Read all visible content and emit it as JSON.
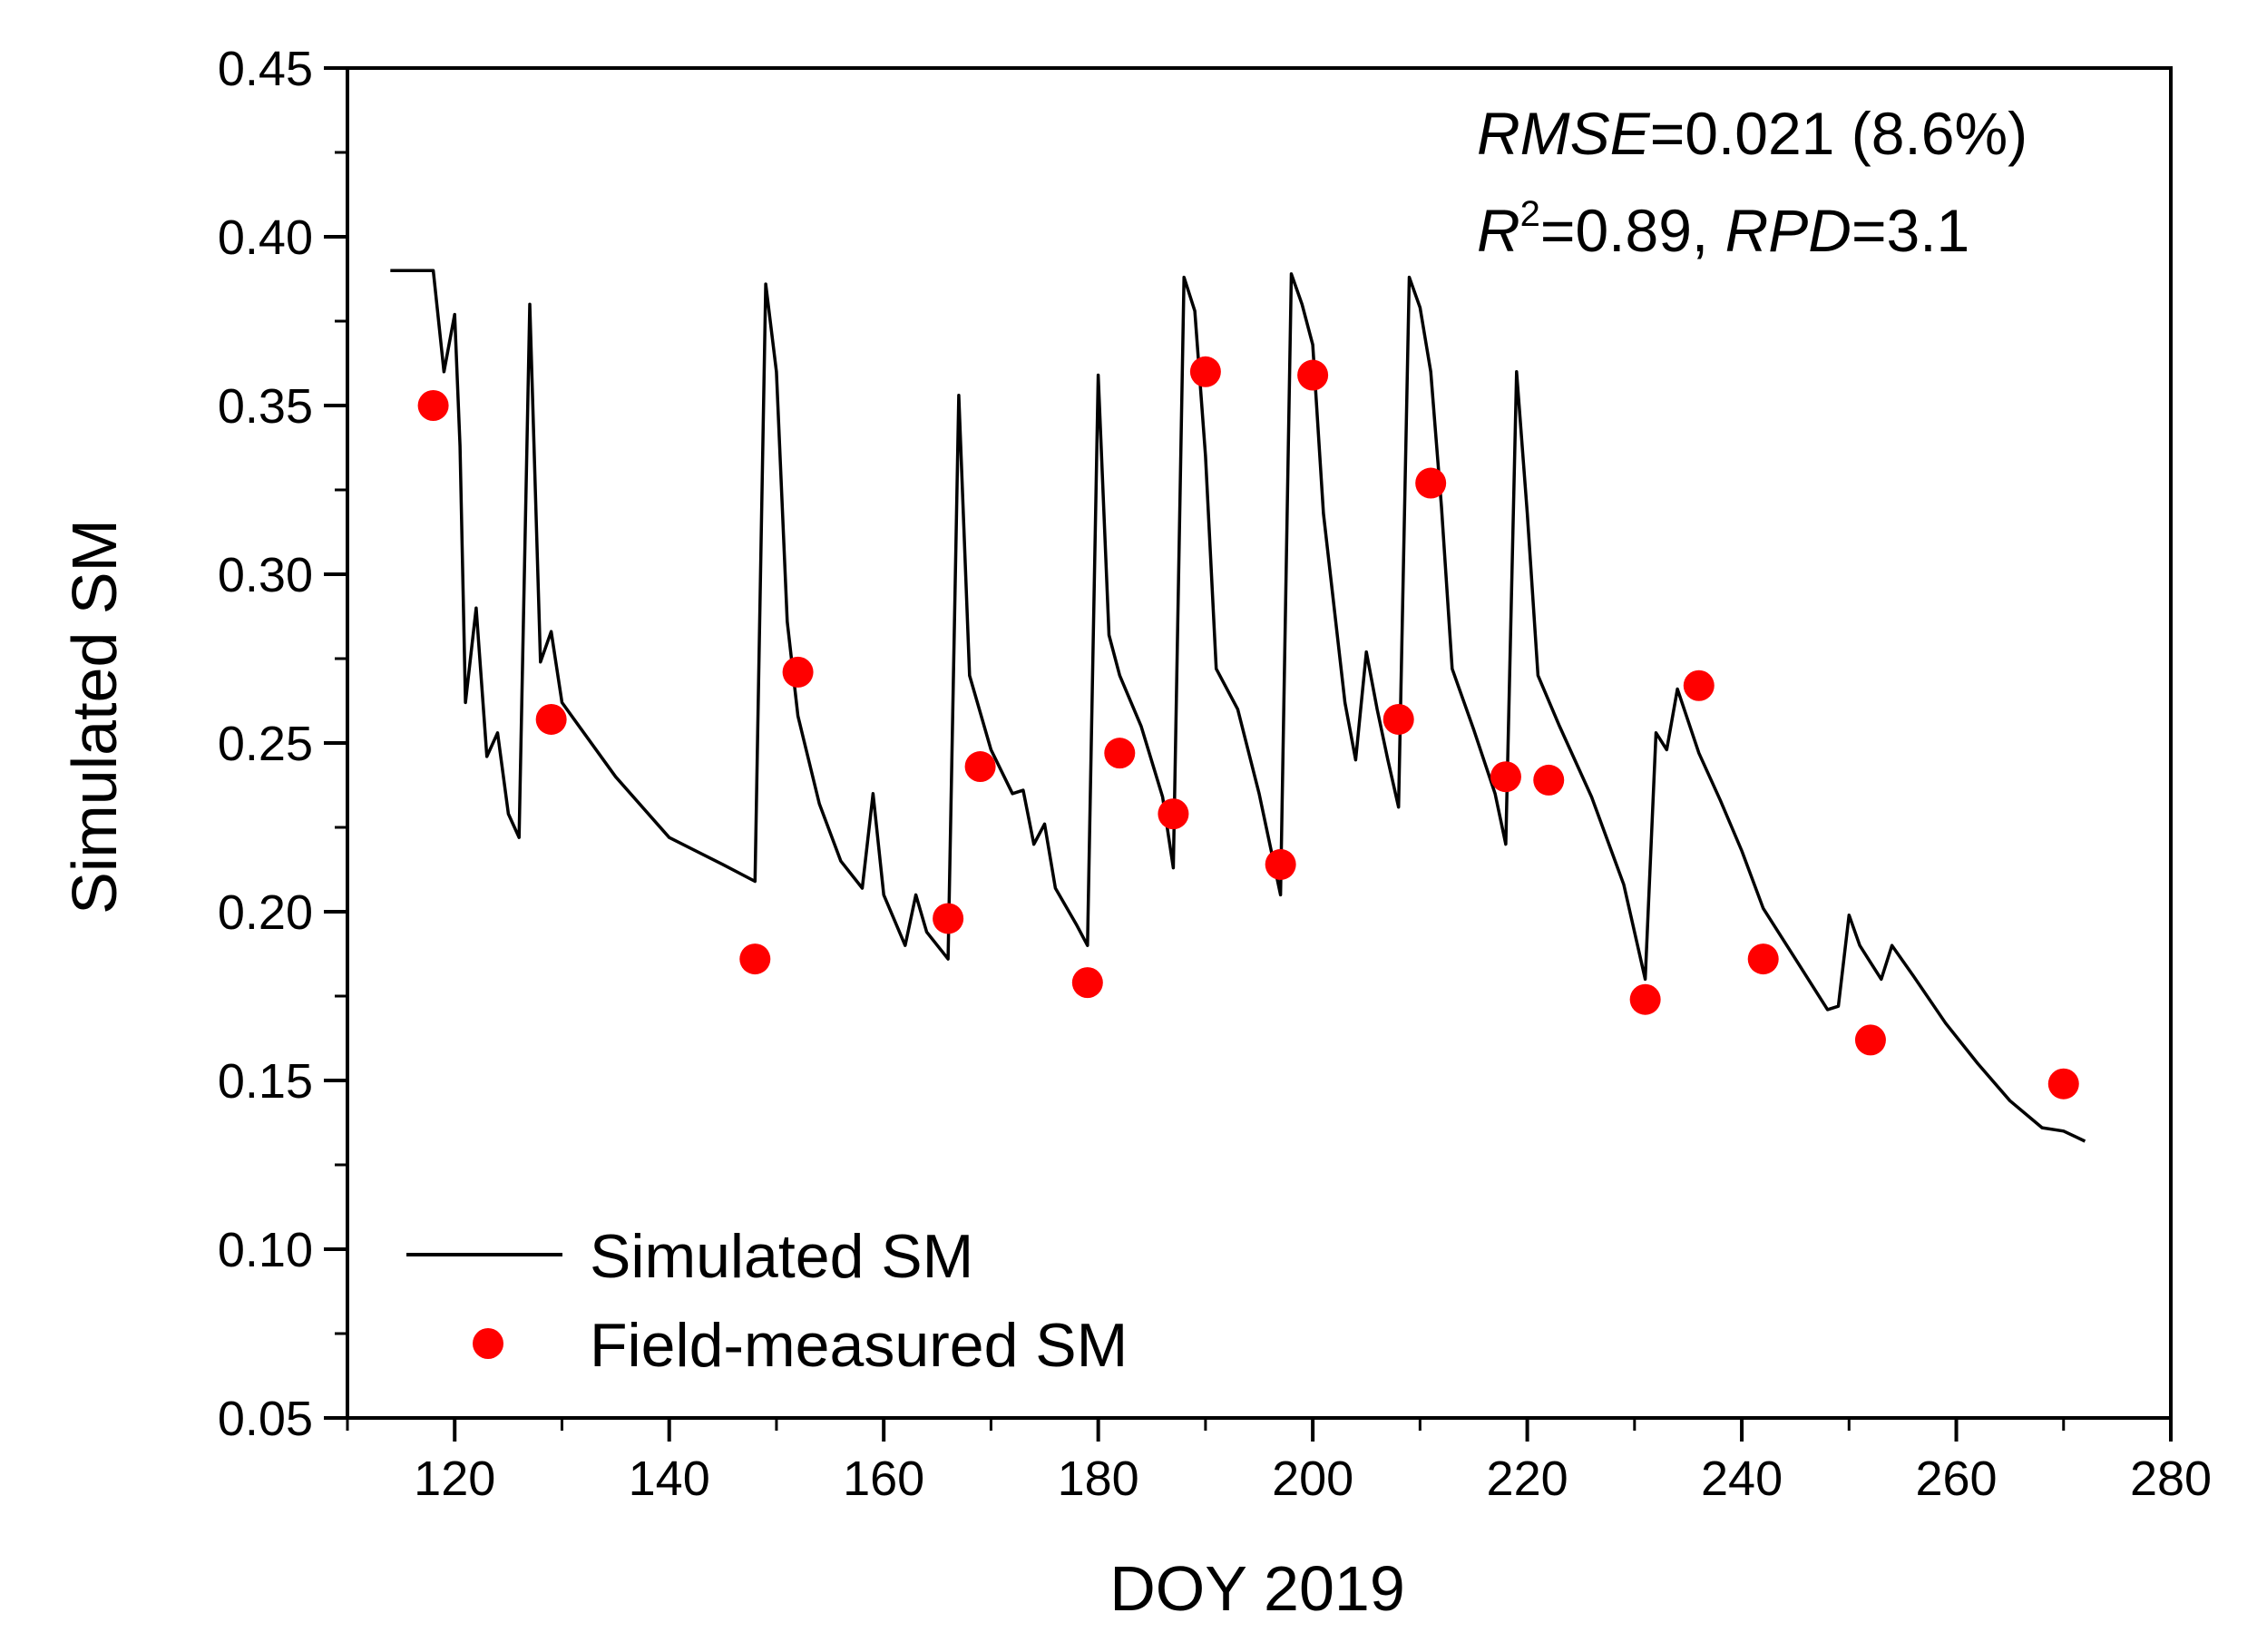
{
  "chart_data": {
    "type": "line",
    "title": "",
    "xlabel": "DOY 2019",
    "ylabel": "Simulated SM",
    "xlim": [
      110,
      280
    ],
    "ylim": [
      0.05,
      0.45
    ],
    "x_ticks": [
      120,
      140,
      160,
      180,
      200,
      220,
      240,
      260,
      280
    ],
    "x_tick_labels": [
      "120",
      "140",
      "160",
      "180",
      "200",
      "220",
      "240",
      "260",
      "280"
    ],
    "y_ticks": [
      0.05,
      0.1,
      0.15,
      0.2,
      0.25,
      0.3,
      0.35,
      0.4,
      0.45
    ],
    "y_tick_labels": [
      "0.05",
      "0.10",
      "0.15",
      "0.20",
      "0.25",
      "0.30",
      "0.35",
      "0.40",
      "0.45"
    ],
    "grid": false,
    "legend_position": "bottom-left",
    "series": [
      {
        "name": "Simulated SM",
        "kind": "line",
        "color": "#000000",
        "x": [
          114,
          118,
          119,
          120,
          120.5,
          121,
          122,
          123,
          124,
          125,
          126,
          127,
          128,
          129,
          130,
          135,
          140,
          145,
          148,
          149,
          150,
          151,
          152,
          154,
          156,
          158,
          159,
          160,
          162,
          163,
          164,
          166,
          167,
          168,
          170,
          172,
          173,
          174,
          175,
          176,
          178,
          179,
          180,
          181,
          182,
          184,
          186,
          187,
          188,
          189,
          190,
          191,
          193,
          195,
          197,
          198,
          199,
          200,
          201,
          203,
          204,
          205,
          206,
          207,
          208,
          209,
          210,
          211,
          212,
          213,
          215,
          217,
          218,
          219,
          220,
          221,
          223,
          226,
          229,
          231,
          232,
          233,
          234,
          236,
          238,
          240,
          242,
          245,
          248,
          249,
          250,
          251,
          252,
          253,
          254,
          256,
          259,
          262,
          265,
          268,
          270,
          272
        ],
        "y": [
          0.39,
          0.39,
          0.36,
          0.377,
          0.338,
          0.262,
          0.29,
          0.246,
          0.253,
          0.229,
          0.222,
          0.38,
          0.274,
          0.283,
          0.262,
          0.24,
          0.222,
          0.214,
          0.209,
          0.386,
          0.36,
          0.286,
          0.258,
          0.232,
          0.215,
          0.207,
          0.235,
          0.205,
          0.19,
          0.205,
          0.194,
          0.186,
          0.353,
          0.27,
          0.248,
          0.235,
          0.236,
          0.22,
          0.226,
          0.207,
          0.196,
          0.19,
          0.359,
          0.282,
          0.27,
          0.255,
          0.234,
          0.213,
          0.388,
          0.378,
          0.335,
          0.272,
          0.26,
          0.235,
          0.205,
          0.389,
          0.38,
          0.368,
          0.318,
          0.262,
          0.245,
          0.277,
          0.26,
          0.245,
          0.231,
          0.388,
          0.379,
          0.36,
          0.32,
          0.272,
          0.254,
          0.235,
          0.22,
          0.36,
          0.318,
          0.27,
          0.255,
          0.234,
          0.208,
          0.18,
          0.253,
          0.248,
          0.266,
          0.247,
          0.233,
          0.218,
          0.201,
          0.186,
          0.171,
          0.172,
          0.199,
          0.19,
          0.185,
          0.18,
          0.19,
          0.181,
          0.167,
          0.155,
          0.144,
          0.136,
          0.135,
          0.132
        ]
      },
      {
        "name": "Field-measured SM",
        "kind": "scatter",
        "color": "#ff0000",
        "x": [
          118,
          129,
          148,
          152,
          166,
          169,
          179,
          182,
          187,
          190,
          197,
          200,
          208,
          211,
          218,
          222,
          231,
          236,
          242,
          252,
          270
        ],
        "y": [
          0.35,
          0.257,
          0.186,
          0.271,
          0.198,
          0.243,
          0.179,
          0.247,
          0.229,
          0.36,
          0.214,
          0.359,
          0.257,
          0.327,
          0.24,
          0.239,
          0.174,
          0.267,
          0.186,
          0.162,
          0.149
        ]
      }
    ],
    "annotations": {
      "rmse_label": "RMSE",
      "rmse_value": "=0.021 (8.6%)",
      "r_label": "R",
      "r_sup": "2",
      "r_value": "=0.89, ",
      "rpd_label": "RPD",
      "rpd_value": "=3.1"
    }
  }
}
